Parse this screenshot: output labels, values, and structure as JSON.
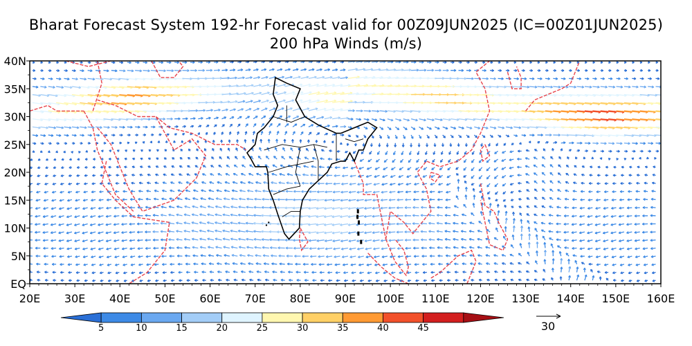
{
  "title": {
    "line1": "Bharat Forecast System 192-hr Forecast valid for 00Z09JUN2025 (IC=00Z01JUN2025)",
    "line2": "200 hPa Winds (m/s)"
  },
  "map": {
    "lon_range": [
      20,
      160
    ],
    "lat_range": [
      0,
      40
    ],
    "x_ticks": [
      "20E",
      "30E",
      "40E",
      "50E",
      "60E",
      "70E",
      "80E",
      "90E",
      "100E",
      "110E",
      "120E",
      "130E",
      "140E",
      "150E",
      "160E"
    ],
    "y_ticks": [
      "EQ",
      "5N",
      "10N",
      "15N",
      "20N",
      "25N",
      "30N",
      "35N",
      "40N"
    ],
    "coastline_color": "#e8434a",
    "india_border_color": "#000000"
  },
  "colorbar": {
    "labels": [
      "5",
      "10",
      "15",
      "20",
      "25",
      "30",
      "35",
      "40",
      "45"
    ],
    "colors": [
      "#2a6fd6",
      "#3d8ae6",
      "#6aa8f0",
      "#a3cdf7",
      "#dff4ff",
      "#fff7b0",
      "#ffd066",
      "#ff9a33",
      "#f2502a",
      "#d31e1e",
      "#a60f14"
    ]
  },
  "reference_vector": {
    "label": "30"
  }
}
